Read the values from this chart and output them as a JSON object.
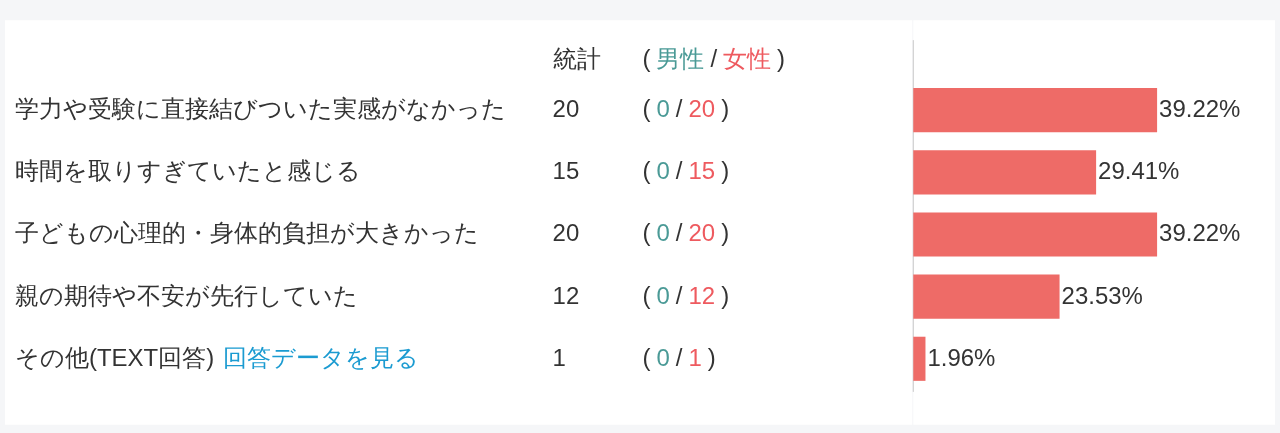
{
  "chart_data": [
    {
      "type": "other",
      "categories": [
        "学力や受験に直接結びついた実感がなかった",
        "時間を取りすぎていたと感じる",
        "子どもの心理的・身体的負担が大きかった",
        "親の期待や不安が先行していた",
        "その他(TEXT回答)"
      ],
      "series": [
        {
          "name": "統計",
          "values": [
            20,
            15,
            20,
            12,
            1
          ]
        },
        {
          "name": "男性",
          "color": "#4a9a96",
          "values": [
            0,
            0,
            0,
            0,
            0
          ]
        },
        {
          "name": "女性",
          "color": "#ee5a5f",
          "values": [
            20,
            15,
            20,
            12,
            1
          ]
        }
      ],
      "data_labels": true,
      "annotations": [
        "回答データを見る",
        "(",
        "/",
        ")"
      ]
    },
    {
      "type": "bar",
      "orientation": "horizontal",
      "categories": [
        null,
        null,
        null,
        null,
        null
      ],
      "values": [
        39.22,
        29.41,
        39.22,
        23.53,
        1.96
      ],
      "color": "#ee6b67",
      "value_labels": [
        "39.22%",
        "29.41%",
        "39.22%",
        "23.53%",
        "1.96%"
      ]
    }
  ]
}
